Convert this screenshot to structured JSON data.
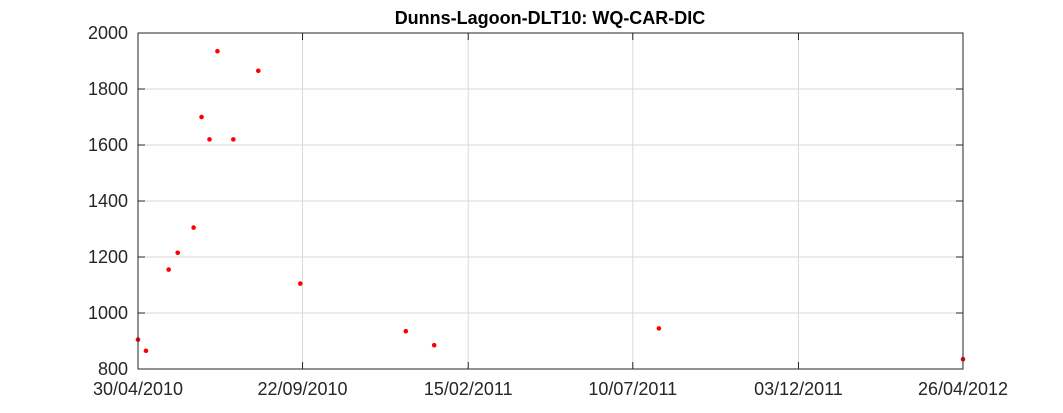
{
  "chart_data": {
    "type": "scatter",
    "title": "Dunns-Lagoon-DLT10: WQ-CAR-DIC",
    "xlabel": "",
    "ylabel": "",
    "x_axis_kind": "date",
    "xlim": [
      "2010-04-30",
      "2012-04-26"
    ],
    "ylim": [
      800,
      2000
    ],
    "xticks": [
      {
        "date": "2010-04-30",
        "label": "30/04/2010"
      },
      {
        "date": "2010-09-22",
        "label": "22/09/2010"
      },
      {
        "date": "2011-02-15",
        "label": "15/02/2011"
      },
      {
        "date": "2011-07-10",
        "label": "10/07/2011"
      },
      {
        "date": "2011-12-03",
        "label": "03/12/2011"
      },
      {
        "date": "2012-04-26",
        "label": "26/04/2012"
      }
    ],
    "yticks": [
      800,
      1000,
      1200,
      1400,
      1600,
      1800,
      2000
    ],
    "grid": true,
    "marker_color": "#ff0000",
    "series": [
      {
        "points": [
          {
            "x": "2010-04-30",
            "y": 905
          },
          {
            "x": "2010-05-07",
            "y": 865
          },
          {
            "x": "2010-05-27",
            "y": 1155
          },
          {
            "x": "2010-06-04",
            "y": 1215
          },
          {
            "x": "2010-06-18",
            "y": 1305
          },
          {
            "x": "2010-06-25",
            "y": 1700
          },
          {
            "x": "2010-07-02",
            "y": 1620
          },
          {
            "x": "2010-07-09",
            "y": 1935
          },
          {
            "x": "2010-07-23",
            "y": 1620
          },
          {
            "x": "2010-08-14",
            "y": 1865
          },
          {
            "x": "2010-09-20",
            "y": 1105
          },
          {
            "x": "2010-12-22",
            "y": 935
          },
          {
            "x": "2011-01-16",
            "y": 885
          },
          {
            "x": "2011-08-02",
            "y": 945
          },
          {
            "x": "2012-04-26",
            "y": 835
          }
        ]
      }
    ]
  }
}
